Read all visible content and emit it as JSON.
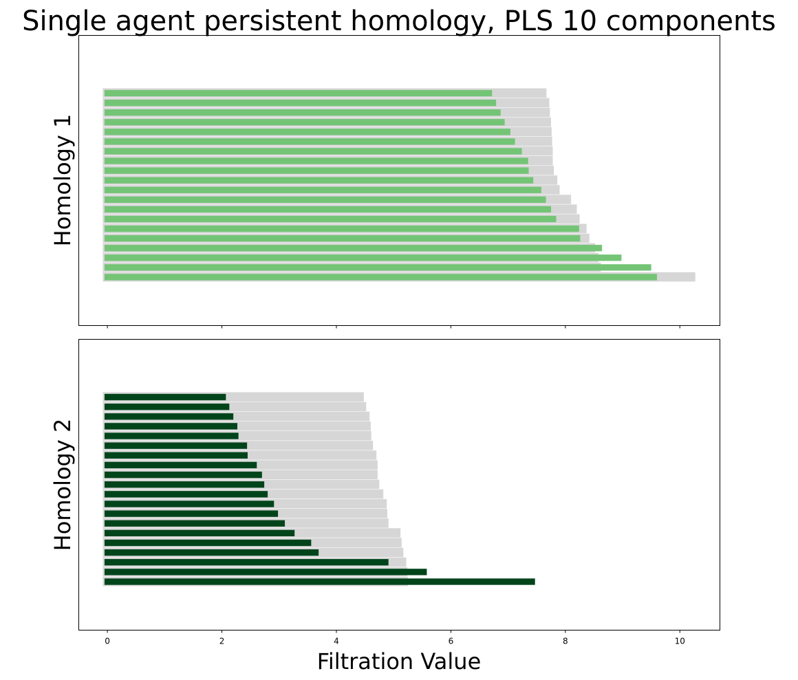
{
  "chart_data": {
    "type": "bar",
    "title": "Single agent persistent homology, PLS 10 components",
    "xlabel": "Filtration Value",
    "xlim": [
      -0.5,
      10.7
    ],
    "x_ticks": [
      0,
      2,
      4,
      6,
      8,
      10
    ],
    "x_tick_labels": [
      "0",
      "2",
      "4",
      "6",
      "8",
      "10"
    ],
    "grid": false,
    "panels": [
      {
        "ylabel": "Homology 1",
        "series": [
          {
            "color": "#d6d6d6",
            "values": [
              7.67,
              7.72,
              7.73,
              7.75,
              7.76,
              7.77,
              7.78,
              7.78,
              7.8,
              7.86,
              7.9,
              8.1,
              8.2,
              8.25,
              8.37,
              8.42,
              8.52,
              8.58,
              8.62,
              10.27
            ]
          },
          {
            "color": "#74c476",
            "values": [
              6.72,
              6.79,
              6.87,
              6.94,
              7.04,
              7.12,
              7.24,
              7.35,
              7.36,
              7.44,
              7.58,
              7.66,
              7.75,
              7.84,
              8.24,
              8.26,
              8.64,
              8.98,
              9.5,
              9.6
            ]
          }
        ]
      },
      {
        "ylabel": "Homology 2",
        "series": [
          {
            "color": "#d6d6d6",
            "values": [
              4.48,
              4.52,
              4.58,
              4.6,
              4.61,
              4.64,
              4.7,
              4.72,
              4.72,
              4.75,
              4.82,
              4.88,
              4.89,
              4.91,
              5.12,
              5.14,
              5.17,
              5.22,
              5.24,
              5.25
            ]
          },
          {
            "color": "#00441b",
            "values": [
              2.07,
              2.13,
              2.2,
              2.27,
              2.29,
              2.44,
              2.45,
              2.61,
              2.7,
              2.74,
              2.8,
              2.91,
              2.98,
              3.1,
              3.27,
              3.56,
              3.69,
              4.91,
              5.58,
              7.47
            ]
          }
        ]
      }
    ]
  }
}
